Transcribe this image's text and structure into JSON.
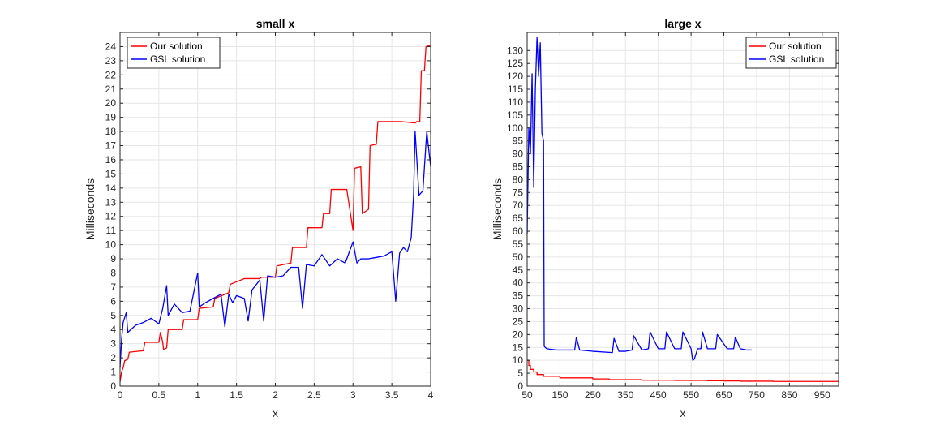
{
  "chart_data": [
    {
      "type": "line",
      "title": "small x",
      "xlabel": "x",
      "ylabel": "Milliseconds",
      "xlim": [
        0,
        4
      ],
      "ylim": [
        0,
        25
      ],
      "xticks": [
        0,
        0.5,
        1,
        1.5,
        2,
        2.5,
        3,
        3.5,
        4
      ],
      "xtick_labels": [
        "0",
        "0.5",
        "1",
        "1.5",
        "2",
        "2.5",
        "3",
        "3.5",
        "4"
      ],
      "yticks": [
        0,
        1,
        2,
        3,
        4,
        5,
        6,
        7,
        8,
        9,
        10,
        11,
        12,
        13,
        14,
        15,
        16,
        17,
        18,
        19,
        20,
        21,
        22,
        23,
        24
      ],
      "ytick_labels": [
        "0",
        "1",
        "2",
        "3",
        "4",
        "5",
        "6",
        "7",
        "8",
        "9",
        "10",
        "11",
        "12",
        "13",
        "14",
        "15",
        "16",
        "17",
        "18",
        "19",
        "20",
        "21",
        "22",
        "23",
        "24"
      ],
      "grid": true,
      "legend": "top-left",
      "series": [
        {
          "name": "Our solution",
          "color": "#ff0000",
          "x": [
            0,
            0.02,
            0.04,
            0.06,
            0.1,
            0.12,
            0.3,
            0.32,
            0.5,
            0.52,
            0.55,
            0.56,
            0.6,
            0.62,
            0.8,
            0.82,
            1.0,
            1.02,
            1.2,
            1.22,
            1.4,
            1.42,
            1.6,
            1.62,
            1.8,
            1.82,
            2.0,
            2.02,
            2.2,
            2.22,
            2.4,
            2.42,
            2.6,
            2.62,
            2.7,
            2.72,
            2.9,
            2.92,
            3.0,
            3.02,
            3.1,
            3.12,
            3.2,
            3.22,
            3.3,
            3.32,
            3.4,
            3.42,
            3.6,
            3.62,
            3.8,
            3.82,
            3.86,
            3.88,
            3.92,
            3.94,
            4.0
          ],
          "y": [
            0.3,
            1.0,
            1.3,
            1.8,
            1.9,
            2.4,
            2.5,
            3.1,
            3.1,
            3.8,
            3.1,
            2.6,
            2.7,
            4.0,
            4.0,
            4.7,
            4.7,
            5.5,
            5.6,
            6.2,
            6.6,
            7.2,
            7.6,
            7.6,
            7.6,
            7.7,
            7.7,
            8.5,
            8.7,
            9.8,
            9.8,
            11.2,
            11.2,
            12.2,
            12.2,
            13.9,
            13.9,
            13.9,
            11.0,
            15.4,
            15.5,
            12.2,
            12.5,
            17.0,
            17.1,
            18.7,
            18.7,
            18.7,
            18.7,
            18.7,
            18.6,
            18.7,
            18.7,
            22.3,
            22.3,
            24.0,
            24.1
          ]
        },
        {
          "name": "GSL solution",
          "color": "#0000ff",
          "x": [
            0,
            0.02,
            0.04,
            0.08,
            0.1,
            0.2,
            0.3,
            0.4,
            0.5,
            0.55,
            0.6,
            0.62,
            0.7,
            0.8,
            0.9,
            1.0,
            1.02,
            1.1,
            1.2,
            1.3,
            1.35,
            1.4,
            1.45,
            1.5,
            1.6,
            1.65,
            1.7,
            1.8,
            1.85,
            1.9,
            2.0,
            2.1,
            2.2,
            2.3,
            2.35,
            2.4,
            2.5,
            2.6,
            2.7,
            2.8,
            2.9,
            3.0,
            3.05,
            3.1,
            3.2,
            3.3,
            3.4,
            3.5,
            3.55,
            3.6,
            3.65,
            3.7,
            3.75,
            3.78,
            3.8,
            3.85,
            3.9,
            3.95,
            4.0
          ],
          "y": [
            1.3,
            3.3,
            4.5,
            5.2,
            3.8,
            4.3,
            4.5,
            4.8,
            4.4,
            5.5,
            7.1,
            5.0,
            5.8,
            5.2,
            5.3,
            8.0,
            5.6,
            5.9,
            6.2,
            6.5,
            4.2,
            6.5,
            5.9,
            6.4,
            6.2,
            4.6,
            6.8,
            7.5,
            4.6,
            7.8,
            7.7,
            7.8,
            8.4,
            8.4,
            5.5,
            8.6,
            8.5,
            9.3,
            8.5,
            9.0,
            8.7,
            10.2,
            8.7,
            9.0,
            9.0,
            9.1,
            9.2,
            9.5,
            6.0,
            9.4,
            9.8,
            9.5,
            10.5,
            13.5,
            18.0,
            13.5,
            13.8,
            18.0,
            15.5
          ]
        }
      ]
    },
    {
      "type": "line",
      "title": "large x",
      "xlabel": "x",
      "ylabel": "Milliseconds",
      "xlim": [
        50,
        1000
      ],
      "ylim": [
        0,
        137
      ],
      "xticks": [
        50,
        150,
        250,
        350,
        450,
        550,
        650,
        750,
        850,
        950
      ],
      "xtick_labels": [
        "50",
        "150",
        "250",
        "350",
        "450",
        "550",
        "650",
        "750",
        "850",
        "950"
      ],
      "yticks": [
        0,
        5,
        10,
        15,
        20,
        25,
        30,
        35,
        40,
        45,
        50,
        55,
        60,
        65,
        70,
        75,
        80,
        85,
        90,
        95,
        100,
        105,
        110,
        115,
        120,
        125,
        130
      ],
      "ytick_labels": [
        "0",
        "5",
        "10",
        "15",
        "20",
        "25",
        "30",
        "35",
        "40",
        "45",
        "50",
        "55",
        "60",
        "65",
        "70",
        "75",
        "80",
        "85",
        "90",
        "95",
        "100",
        "105",
        "110",
        "115",
        "120",
        "125",
        "130"
      ],
      "grid": true,
      "legend": "top-right",
      "series": [
        {
          "name": "Our solution",
          "color": "#ff0000",
          "x": [
            50,
            55,
            60,
            70,
            80,
            100,
            150,
            250,
            300,
            400,
            500,
            600,
            650,
            700,
            800,
            900,
            1000
          ],
          "y": [
            10.0,
            8.0,
            6.5,
            5.5,
            4.5,
            3.8,
            3.2,
            2.8,
            2.5,
            2.3,
            2.2,
            2.1,
            2.0,
            1.9,
            1.8,
            1.8,
            1.8
          ],
          "step": true
        },
        {
          "name": "GSL solution",
          "color": "#0000ff",
          "x": [
            50,
            55,
            60,
            65,
            70,
            75,
            80,
            85,
            90,
            95,
            100,
            102,
            105,
            110,
            140,
            195,
            200,
            210,
            250,
            310,
            315,
            330,
            350,
            370,
            375,
            400,
            420,
            425,
            450,
            470,
            475,
            500,
            520,
            525,
            550,
            555,
            560,
            570,
            580,
            585,
            600,
            625,
            630,
            660,
            680,
            685,
            700,
            720,
            735
          ],
          "y": [
            59,
            100,
            90,
            121,
            77,
            115,
            135,
            120,
            133,
            98,
            95,
            15.5,
            15.0,
            14.5,
            14.0,
            14.0,
            19.0,
            14.0,
            13.5,
            13.0,
            18.5,
            13.5,
            13.5,
            14.0,
            19.5,
            14.0,
            14.5,
            21.0,
            14.5,
            14.5,
            21.0,
            14.5,
            14.5,
            21.0,
            14.5,
            10.0,
            10.5,
            14.5,
            14.5,
            21.0,
            14.5,
            14.5,
            20.0,
            14.5,
            14.5,
            19.0,
            14.5,
            14.0,
            14.0
          ]
        }
      ]
    }
  ]
}
